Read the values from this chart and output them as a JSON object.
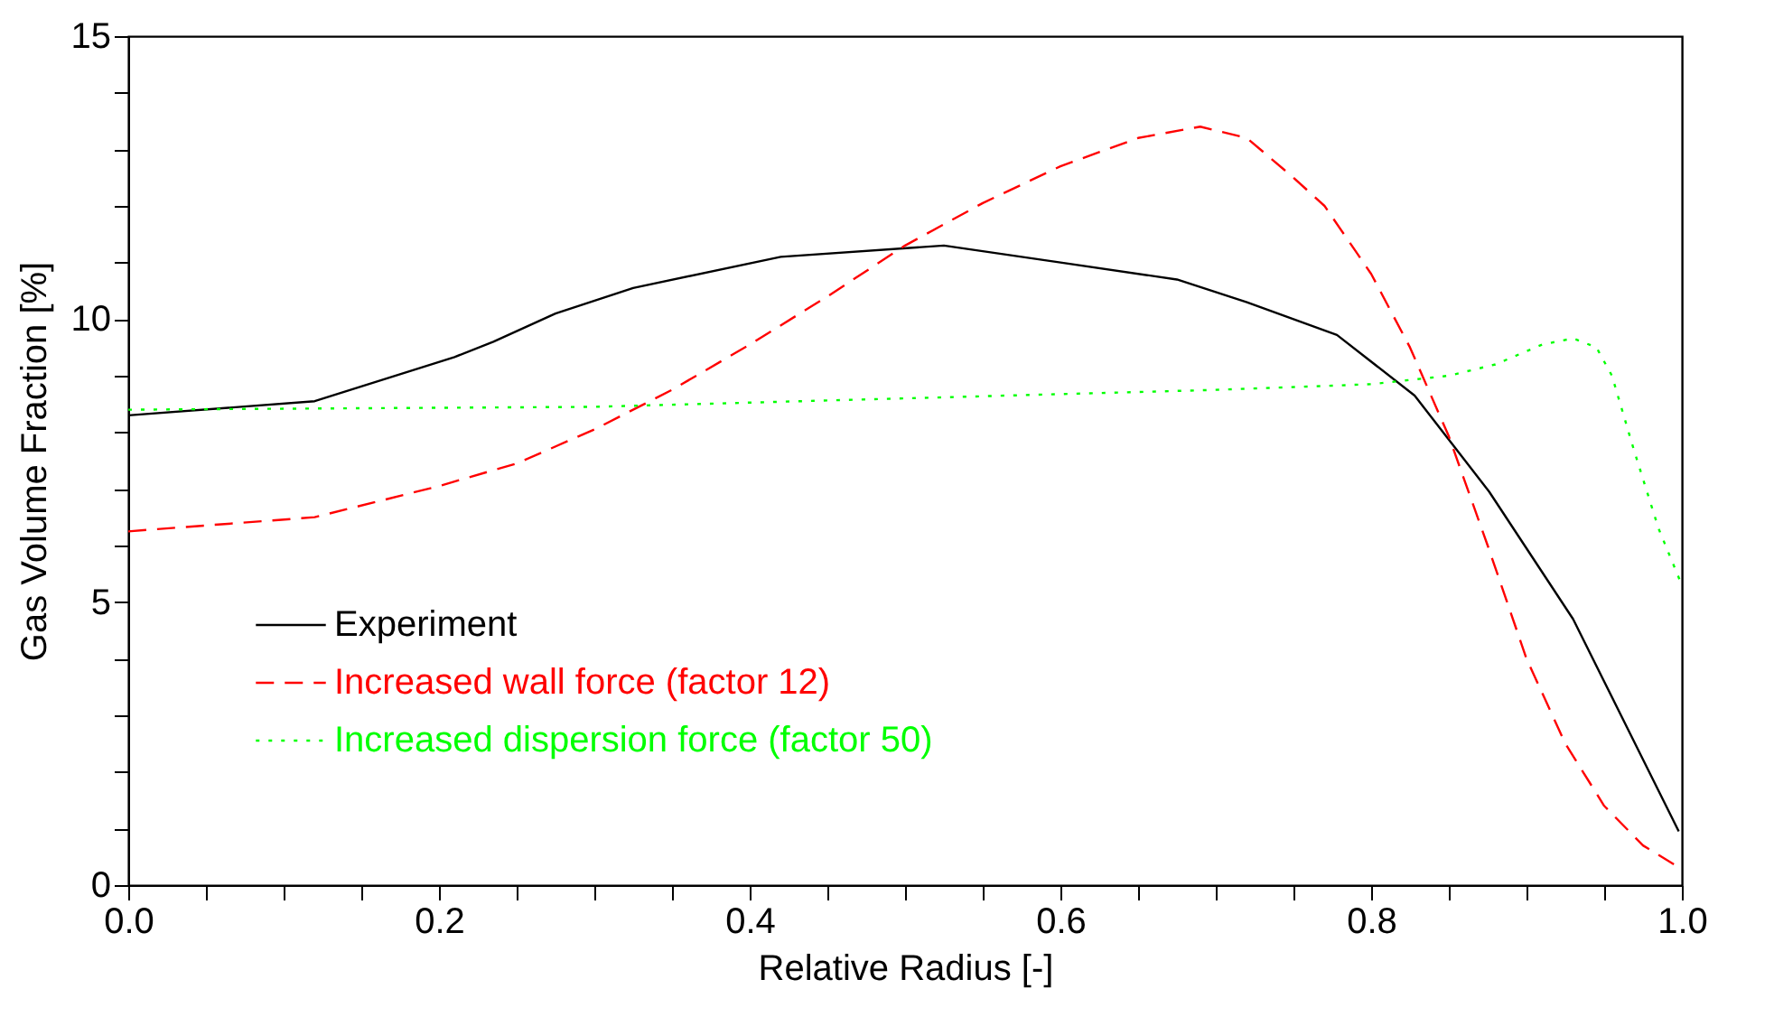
{
  "chart_data": {
    "type": "line",
    "xlabel": "Relative Radius [-]",
    "ylabel": "Gas Volume Fraction [%]",
    "xlim": [
      0,
      1
    ],
    "ylim": [
      0,
      15
    ],
    "xticks": [
      {
        "value": 0,
        "label": "0.0"
      },
      {
        "value": 0.05,
        "label": null
      },
      {
        "value": 0.1,
        "label": null
      },
      {
        "value": 0.15,
        "label": null
      },
      {
        "value": 0.2,
        "label": "0.2"
      },
      {
        "value": 0.25,
        "label": null
      },
      {
        "value": 0.3,
        "label": null
      },
      {
        "value": 0.35,
        "label": null
      },
      {
        "value": 0.4,
        "label": "0.4"
      },
      {
        "value": 0.45,
        "label": null
      },
      {
        "value": 0.5,
        "label": null
      },
      {
        "value": 0.55,
        "label": null
      },
      {
        "value": 0.6,
        "label": "0.6"
      },
      {
        "value": 0.65,
        "label": null
      },
      {
        "value": 0.7,
        "label": null
      },
      {
        "value": 0.75,
        "label": null
      },
      {
        "value": 0.8,
        "label": "0.8"
      },
      {
        "value": 0.85,
        "label": null
      },
      {
        "value": 0.9,
        "label": null
      },
      {
        "value": 0.95,
        "label": null
      },
      {
        "value": 1,
        "label": "1.0"
      }
    ],
    "yticks": [
      0,
      {
        "value": 1,
        "label": null
      },
      {
        "value": 2,
        "label": null
      },
      {
        "value": 3,
        "label": null
      },
      {
        "value": 4,
        "label": null
      },
      5,
      {
        "value": 6,
        "label": null
      },
      {
        "value": 7,
        "label": null
      },
      {
        "value": 8,
        "label": null
      },
      {
        "value": 9,
        "label": null
      },
      10,
      {
        "value": 11,
        "label": null
      },
      {
        "value": 12,
        "label": null
      },
      {
        "value": 13,
        "label": null
      },
      {
        "value": 14,
        "label": null
      },
      15
    ],
    "grid": false,
    "legend": "bottom left",
    "series": [
      {
        "name": "Experiment",
        "color": "#000000",
        "line_style": "solid",
        "x": [
          0,
          0.12,
          0.21,
          0.235,
          0.275,
          0.325,
          0.42,
          0.525,
          0.6,
          0.675,
          0.72,
          0.778,
          0.828,
          0.876,
          0.93,
          0.998
        ],
        "values": [
          8.3,
          8.55,
          9.33,
          9.6,
          10.1,
          10.55,
          11.1,
          11.3,
          11.0,
          10.7,
          10.3,
          9.72,
          8.65,
          6.95,
          4.7,
          0.95
        ]
      },
      {
        "name": "Increased wall force (factor 12)",
        "color": "#ff0000",
        "line_style": "dashed",
        "x": [
          0,
          0.12,
          0.2,
          0.25,
          0.3,
          0.35,
          0.4,
          0.45,
          0.5,
          0.55,
          0.6,
          0.65,
          0.69,
          0.72,
          0.75,
          0.77,
          0.8,
          0.825,
          0.85,
          0.875,
          0.9,
          0.925,
          0.95,
          0.975,
          1
        ],
        "values": [
          6.25,
          6.5,
          7.05,
          7.45,
          8.05,
          8.75,
          9.55,
          10.4,
          11.3,
          12.05,
          12.7,
          13.2,
          13.4,
          13.2,
          12.5,
          12.0,
          10.8,
          9.5,
          7.93,
          6.0,
          4.0,
          2.5,
          1.4,
          0.7,
          0.28
        ]
      },
      {
        "name": "Increased dispersion force (factor 50)",
        "color": "#00ff00",
        "line_style": "dotted",
        "x": [
          0,
          0.3,
          0.5,
          0.7,
          0.8,
          0.85,
          0.88,
          0.91,
          0.93,
          0.945,
          0.955,
          0.969,
          0.985,
          1
        ],
        "values": [
          8.4,
          8.45,
          8.6,
          8.75,
          8.85,
          9.0,
          9.2,
          9.55,
          9.66,
          9.5,
          9.0,
          7.7,
          6.3,
          5.3
        ]
      }
    ]
  }
}
